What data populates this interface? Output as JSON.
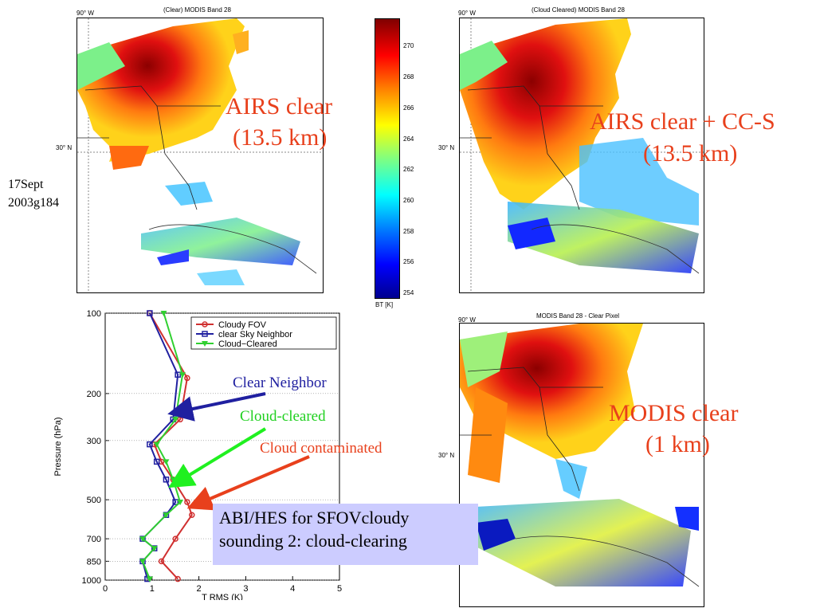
{
  "maps": {
    "clear": {
      "title": "(Clear) MODIS Band 28",
      "lon_label": "90° W",
      "lat_label": "30° N",
      "annotation_line1": "AIRS clear",
      "annotation_line2": "(13.5 km)"
    },
    "cloud_cleared": {
      "title": "(Cloud Cleared) MODIS Band 28",
      "lon_label": "90° W",
      "lat_label": "30° N",
      "annotation_line1": "AIRS clear + CC-S",
      "annotation_line2": "(13.5 km)"
    },
    "modis": {
      "title": "MODIS Band 28 - Clear Pixel",
      "lon_label": "90° W",
      "lat_label": "30° N",
      "annotation_line1": "MODIS clear",
      "annotation_line2": "(1 km)"
    }
  },
  "date_label_line1": "17Sept",
  "date_label_line2": "2003g184",
  "colorbar": {
    "label": "BT [K]",
    "ticks": [
      "270",
      "268",
      "266",
      "264",
      "262",
      "260",
      "258",
      "256",
      "254"
    ]
  },
  "abi_box": {
    "line1": "ABI/HES for SFOVcloudy",
    "line2": "sounding 2: cloud-clearing"
  },
  "arrow_labels": {
    "clear_neighbor": "Clear Neighbor",
    "cloud_cleared": "Cloud-cleared",
    "cloud_contaminated": "Cloud contaminated"
  },
  "colors": {
    "red": "#d03030",
    "blue": "#2020a0",
    "green": "#30d030",
    "annotation": "#e8401c"
  },
  "chart_data": {
    "type": "line",
    "title": "",
    "xlabel": "T RMS (K)",
    "ylabel": "Pressure (hPa)",
    "xlim": [
      0,
      5
    ],
    "ylim": [
      1000,
      100
    ],
    "yscale": "log",
    "xticks": [
      "0",
      "1",
      "2",
      "3",
      "4",
      "5"
    ],
    "yticks": [
      "100",
      "200",
      "300",
      "500",
      "700",
      "850",
      "1000"
    ],
    "legend_position": "top-right",
    "series": [
      {
        "name": "Cloudy FOV",
        "color": "#d03030",
        "marker": "circle",
        "points": [
          [
            0.95,
            100
          ],
          [
            1.75,
            175
          ],
          [
            1.6,
            250
          ],
          [
            1.05,
            310
          ],
          [
            1.2,
            360
          ],
          [
            1.45,
            420
          ],
          [
            1.75,
            510
          ],
          [
            1.85,
            570
          ],
          [
            1.5,
            700
          ],
          [
            1.2,
            850
          ],
          [
            1.55,
            990
          ]
        ]
      },
      {
        "name": "clear Sky Neighbor",
        "color": "#2020a0",
        "marker": "square",
        "points": [
          [
            0.95,
            100
          ],
          [
            1.55,
            170
          ],
          [
            1.45,
            250
          ],
          [
            0.95,
            310
          ],
          [
            1.1,
            360
          ],
          [
            1.3,
            420
          ],
          [
            1.5,
            510
          ],
          [
            1.3,
            570
          ],
          [
            0.8,
            700
          ],
          [
            1.05,
            760
          ],
          [
            0.8,
            850
          ],
          [
            0.9,
            990
          ]
        ]
      },
      {
        "name": "Cloud−Cleared",
        "color": "#30d030",
        "marker": "triangle",
        "points": [
          [
            1.25,
            100
          ],
          [
            1.65,
            170
          ],
          [
            1.5,
            250
          ],
          [
            1.1,
            310
          ],
          [
            1.3,
            360
          ],
          [
            1.45,
            420
          ],
          [
            1.6,
            510
          ],
          [
            1.3,
            570
          ],
          [
            0.8,
            700
          ],
          [
            1.05,
            760
          ],
          [
            0.8,
            850
          ],
          [
            0.95,
            990
          ]
        ]
      }
    ]
  }
}
